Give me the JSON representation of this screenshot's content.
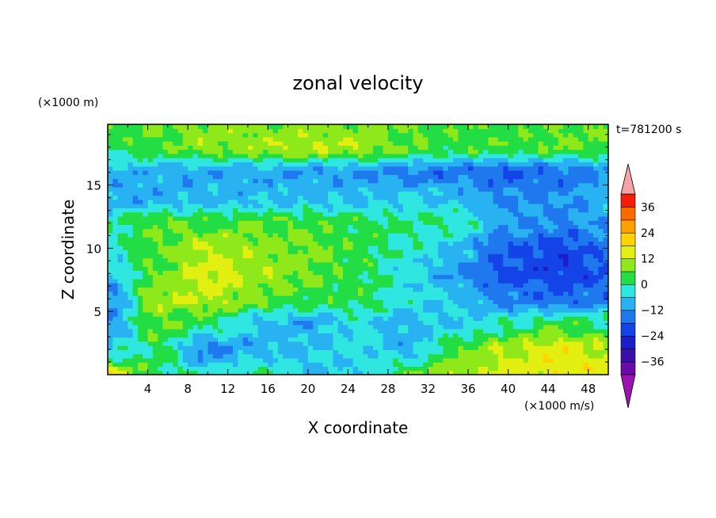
{
  "chart_data": {
    "type": "heatmap",
    "title": "zonal velocity",
    "xlabel": "X coordinate",
    "ylabel": "Z coordinate",
    "x_unit": "(×1000 m/s)",
    "y_unit": "(×1000 m)",
    "time_label": "t=781200 s",
    "xlim": [
      0,
      50
    ],
    "ylim": [
      0,
      19.8
    ],
    "x_ticks": [
      4,
      8,
      12,
      16,
      20,
      24,
      28,
      32,
      36,
      40,
      44,
      48
    ],
    "y_ticks": [
      5,
      10,
      15
    ],
    "colorbar": {
      "levels": [
        -42,
        -36,
        -30,
        -24,
        -18,
        -12,
        -6,
        0,
        6,
        12,
        18,
        24,
        30,
        36,
        42
      ],
      "tick_labels": [
        "36",
        "24",
        "12",
        "0",
        "-12",
        "-24",
        "-36"
      ],
      "colors": [
        "#6a0aa8",
        "#3a10a8",
        "#1a1fc8",
        "#1444e8",
        "#1f78ee",
        "#28b2f2",
        "#2fe6e0",
        "#22dd44",
        "#8ee81a",
        "#e2ef10",
        "#ffd200",
        "#ffa000",
        "#ff6a00",
        "#f41e0a"
      ],
      "under_color": "#9a12b0",
      "over_color": "#f4a3a6"
    },
    "field_grid": {
      "x": [
        0,
        5,
        10,
        15,
        20,
        25,
        30,
        35,
        40,
        45,
        50
      ],
      "z": [
        0,
        2,
        4,
        6,
        8,
        10,
        12,
        14,
        16,
        18,
        19.8
      ],
      "u": [
        [
          15,
          1,
          -3,
          1,
          -5,
          -6,
          5,
          11,
          14,
          16,
          15
        ],
        [
          -5,
          2,
          -14,
          -8,
          -7,
          -4,
          -8,
          6,
          12,
          16,
          12
        ],
        [
          -12,
          6,
          1,
          -7,
          -10,
          -4,
          -9,
          -6,
          -1,
          4,
          1
        ],
        [
          -14,
          10,
          12,
          7,
          3,
          2,
          -3,
          -7,
          -14,
          -17,
          -14
        ],
        [
          -6,
          6,
          15,
          10,
          7,
          3,
          -4,
          -12,
          -20,
          -22,
          -18
        ],
        [
          -3,
          5,
          12,
          9,
          8,
          3,
          -2,
          -8,
          -18,
          -21,
          -16
        ],
        [
          0,
          6,
          4,
          6,
          4,
          3,
          1,
          0,
          -10,
          -13,
          -10
        ],
        [
          -10,
          -9,
          -8,
          -8,
          -7,
          -7,
          -6,
          -7,
          -13,
          -12,
          -9
        ],
        [
          -9,
          -9,
          -10,
          -10,
          -11,
          -12,
          -14,
          -15,
          -18,
          -16,
          -12
        ],
        [
          2,
          4,
          8,
          10,
          12,
          10,
          6,
          4,
          4,
          6,
          5
        ],
        [
          4,
          6,
          8,
          8,
          8,
          8,
          6,
          4,
          4,
          6,
          6
        ]
      ]
    }
  }
}
